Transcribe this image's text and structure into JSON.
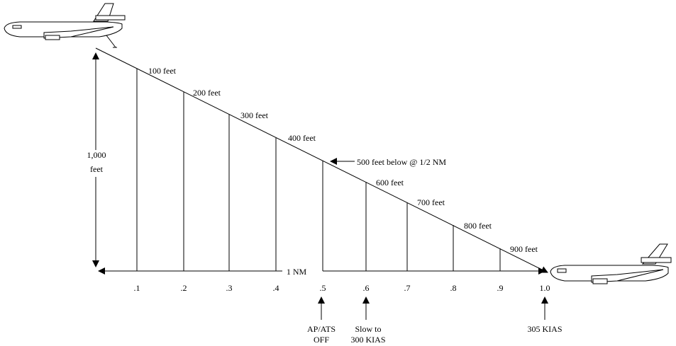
{
  "altitude_labels": [
    "100 feet",
    "200 feet",
    "300 feet",
    "400 feet",
    "600 feet",
    "700 feet",
    "800 feet",
    "900 feet"
  ],
  "midpoint_callout": "500 feet below @ 1/2 NM",
  "vertical_span": {
    "line1": "1,000",
    "line2": "feet"
  },
  "horizontal_span": "1 NM",
  "distance_ticks": [
    ".1",
    ".2",
    ".3",
    ".4",
    ".5",
    ".6",
    ".7",
    ".8",
    ".9",
    "1.0"
  ],
  "annotations": {
    "ap_ats": {
      "line1": "AP/ATS",
      "line2": "OFF"
    },
    "slow": {
      "line1": "Slow to",
      "line2": "300 KIAS"
    },
    "kias": "305 KIAS"
  },
  "icons": [
    "tanker-aircraft-icon",
    "receiver-aircraft-icon"
  ]
}
